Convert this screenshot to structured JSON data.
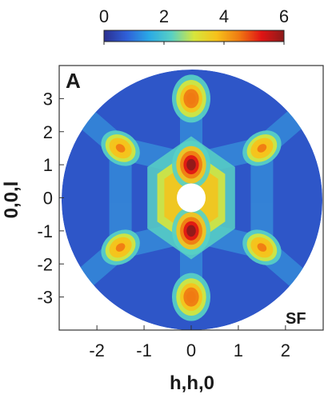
{
  "chart_data": {
    "type": "heatmap",
    "panel_label": "A",
    "annotation": "SF",
    "xlabel": "h,h,0",
    "ylabel": "0,0,l",
    "xlim": [
      -2.8,
      2.8
    ],
    "ylim": [
      -4.0,
      4.0
    ],
    "x_ticks": [
      -2,
      -1,
      0,
      1,
      2
    ],
    "x_tick_labels": [
      "-2",
      "-1",
      "0",
      "1",
      "2"
    ],
    "y_ticks": [
      3,
      2,
      1,
      0,
      -1,
      -2,
      -3
    ],
    "y_tick_labels": [
      "3",
      "2",
      "1",
      "0",
      "-1",
      "-2",
      "-3"
    ],
    "colorbar": {
      "range": [
        0,
        6
      ],
      "ticks": [
        0,
        2,
        4,
        6
      ],
      "tick_labels": [
        "0",
        "2",
        "4",
        "6"
      ],
      "placement": "top",
      "colors": [
        "#2b2f8f",
        "#2f5fd8",
        "#2aa9e6",
        "#58d0c4",
        "#d6e63c",
        "#f6c21b",
        "#f07a12",
        "#e01414",
        "#8b1a1a"
      ]
    },
    "features": [
      {
        "h": 0.0,
        "l": 1.0,
        "intensity": 6.0
      },
      {
        "h": 0.0,
        "l": -1.0,
        "intensity": 6.0
      },
      {
        "h": 0.0,
        "l": 3.0,
        "intensity": 4.8
      },
      {
        "h": 0.0,
        "l": -3.0,
        "intensity": 4.8
      },
      {
        "h": 1.5,
        "l": 1.5,
        "intensity": 4.5
      },
      {
        "h": -1.5,
        "l": 1.5,
        "intensity": 4.5
      },
      {
        "h": 1.5,
        "l": -1.5,
        "intensity": 4.5
      },
      {
        "h": -1.5,
        "l": -1.5,
        "intensity": 4.5
      }
    ],
    "background_intensity": 0.6,
    "center_hole": {
      "h": 0.0,
      "l": 0.0
    }
  }
}
